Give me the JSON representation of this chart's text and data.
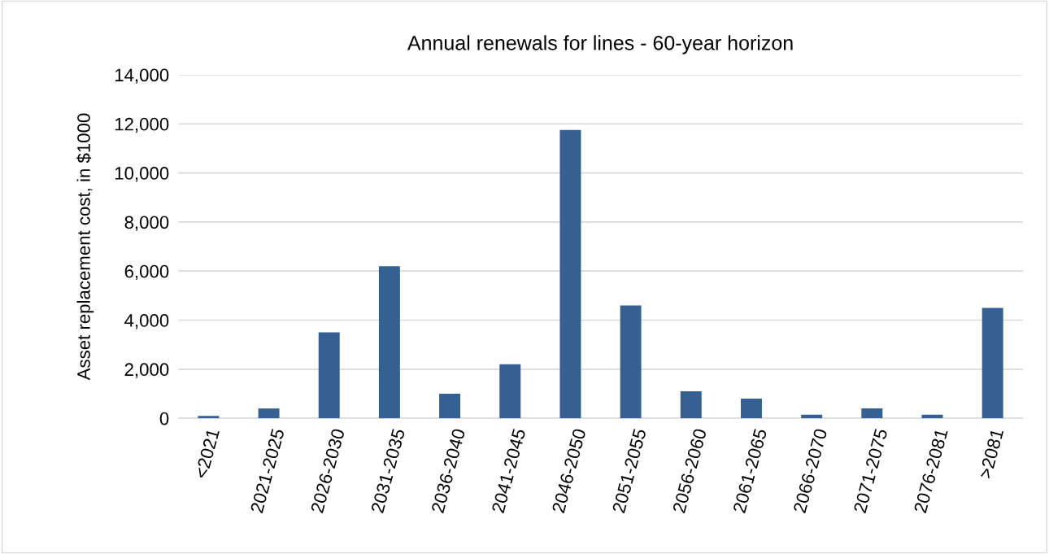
{
  "chart_data": {
    "type": "bar",
    "title": "Annual renewals for lines - 60-year horizon",
    "ylabel": "Asset replacement cost, in $1000",
    "categories": [
      "<2021",
      "2021-2025",
      "2026-2030",
      "2031-2035",
      "2036-2040",
      "2041-2045",
      "2046-2050",
      "2051-2055",
      "2056-2060",
      "2061-2065",
      "2066-2070",
      "2071-2075",
      "2076-2081",
      ">2081"
    ],
    "values": [
      100,
      400,
      3500,
      6200,
      1000,
      2200,
      11750,
      4600,
      1100,
      800,
      150,
      400,
      150,
      4500
    ],
    "color": "#376092",
    "ylim": [
      0,
      14000
    ],
    "yticks": [
      {
        "value": 0,
        "label": "0"
      },
      {
        "value": 2000,
        "label": "2,000"
      },
      {
        "value": 4000,
        "label": "4,000"
      },
      {
        "value": 6000,
        "label": "6,000"
      },
      {
        "value": 8000,
        "label": "8,000"
      },
      {
        "value": 10000,
        "label": "10,000"
      },
      {
        "value": 12000,
        "label": "12,000"
      },
      {
        "value": 14000,
        "label": "14,000"
      }
    ],
    "grid": "y"
  }
}
